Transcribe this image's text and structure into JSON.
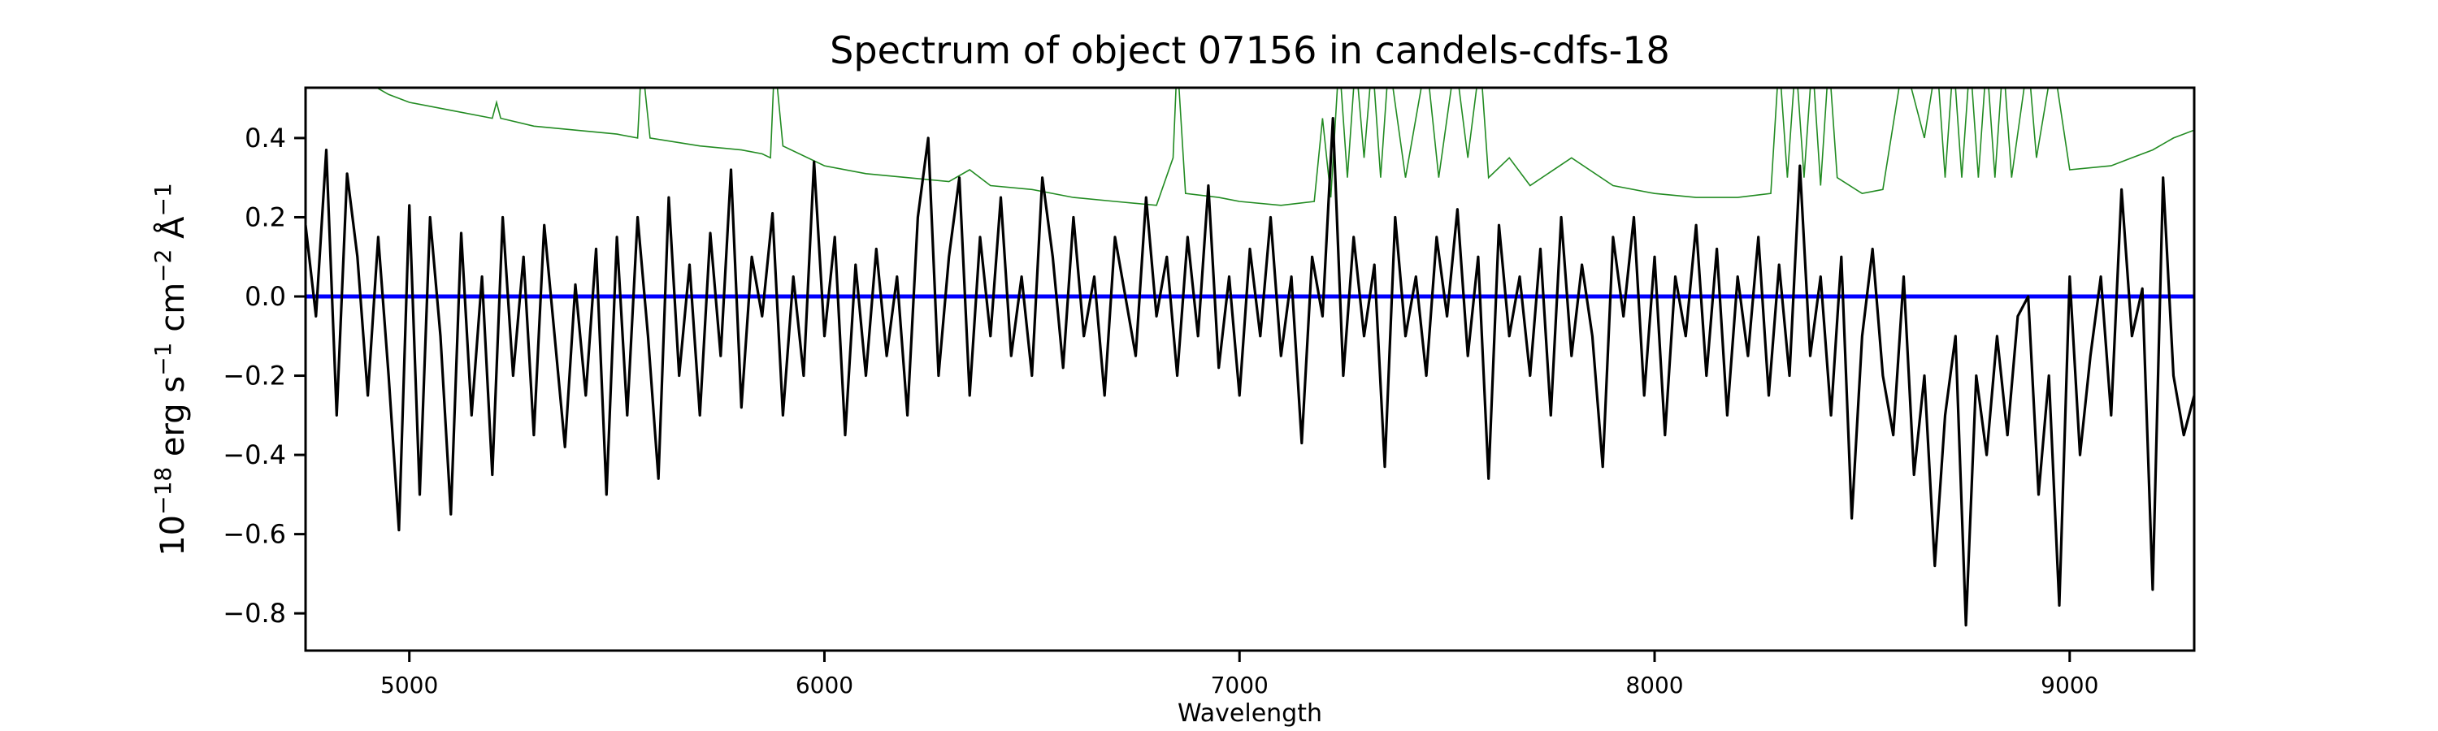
{
  "chart_data": {
    "type": "line",
    "title": "Spectrum of object 07156 in candels-cdfs-18",
    "xlabel": "Wavelength",
    "ylabel_parts": {
      "base": "10",
      "exp": "−18",
      "unit1": " erg s",
      "e1": "−1",
      "unit2": " cm",
      "e2": "−2",
      "unit3": " Å",
      "e3": "−1"
    },
    "xlim": [
      4750,
      9300
    ],
    "ylim": [
      -0.894,
      0.527
    ],
    "xticks": [
      5000,
      6000,
      7000,
      8000,
      9000
    ],
    "xtick_labels": [
      "5000",
      "6000",
      "7000",
      "8000",
      "9000"
    ],
    "yticks": [
      0.4,
      0.2,
      0.0,
      -0.2,
      -0.4,
      -0.6,
      -0.8
    ],
    "ytick_labels": [
      "0.4",
      "0.2",
      "0.0",
      "−0.2",
      "−0.4",
      "−0.6",
      "−0.8"
    ],
    "grid": false,
    "colors": {
      "flux": "#000000",
      "zero": "#0000ff",
      "contam": "#228b22"
    },
    "flux": {
      "x_start": 4750,
      "x_step": 25,
      "values": [
        0.18,
        -0.05,
        0.37,
        -0.3,
        0.31,
        0.1,
        -0.25,
        0.15,
        -0.2,
        -0.59,
        0.23,
        -0.5,
        0.2,
        -0.1,
        -0.55,
        0.16,
        -0.3,
        0.05,
        -0.45,
        0.2,
        -0.2,
        0.1,
        -0.35,
        0.18,
        -0.1,
        -0.38,
        0.03,
        -0.25,
        0.12,
        -0.5,
        0.15,
        -0.3,
        0.2,
        -0.1,
        -0.46,
        0.25,
        -0.2,
        0.08,
        -0.3,
        0.16,
        -0.15,
        0.32,
        -0.28,
        0.1,
        -0.05,
        0.21,
        -0.3,
        0.05,
        -0.2,
        0.34,
        -0.1,
        0.15,
        -0.35,
        0.08,
        -0.2,
        0.12,
        -0.15,
        0.05,
        -0.3,
        0.2,
        0.4,
        -0.2,
        0.1,
        0.3,
        -0.25,
        0.15,
        -0.1,
        0.25,
        -0.15,
        0.05,
        -0.2,
        0.3,
        0.1,
        -0.18,
        0.2,
        -0.1,
        0.05,
        -0.25,
        0.15,
        0.0,
        -0.15,
        0.25,
        -0.05,
        0.1,
        -0.2,
        0.15,
        -0.1,
        0.28,
        -0.18,
        0.05,
        -0.25,
        0.12,
        -0.1,
        0.2,
        -0.15,
        0.05,
        -0.37,
        0.1,
        -0.05,
        0.45,
        -0.2,
        0.15,
        -0.1,
        0.08,
        -0.43,
        0.2,
        -0.1,
        0.05,
        -0.2,
        0.15,
        -0.05,
        0.22,
        -0.15,
        0.1,
        -0.46,
        0.18,
        -0.1,
        0.05,
        -0.2,
        0.12,
        -0.3,
        0.2,
        -0.15,
        0.08,
        -0.1,
        -0.43,
        0.15,
        -0.05,
        0.2,
        -0.25,
        0.1,
        -0.35,
        0.05,
        -0.1,
        0.18,
        -0.2,
        0.12,
        -0.3,
        0.05,
        -0.15,
        0.15,
        -0.25,
        0.08,
        -0.2,
        0.33,
        -0.15,
        0.05,
        -0.3,
        0.1,
        -0.56,
        -0.1,
        0.12,
        -0.2,
        -0.35,
        0.05,
        -0.45,
        -0.2,
        -0.68,
        -0.3,
        -0.1,
        -0.83,
        -0.2,
        -0.4,
        -0.1,
        -0.35,
        -0.05,
        0.0,
        -0.5,
        -0.2,
        -0.78,
        0.05,
        -0.4,
        -0.15,
        0.05,
        -0.3,
        0.27,
        -0.1,
        0.02,
        -0.74,
        0.3,
        -0.2,
        -0.35,
        -0.25
      ]
    },
    "zero_line": 0.0,
    "contamination": [
      [
        4900,
        0.54
      ],
      [
        4950,
        0.51
      ],
      [
        5000,
        0.49
      ],
      [
        5100,
        0.47
      ],
      [
        5200,
        0.45
      ],
      [
        5210,
        0.49
      ],
      [
        5220,
        0.45
      ],
      [
        5300,
        0.43
      ],
      [
        5400,
        0.42
      ],
      [
        5500,
        0.41
      ],
      [
        5550,
        0.4
      ],
      [
        5560,
        0.6
      ],
      [
        5580,
        0.4
      ],
      [
        5700,
        0.38
      ],
      [
        5800,
        0.37
      ],
      [
        5850,
        0.36
      ],
      [
        5870,
        0.35
      ],
      [
        5880,
        0.6
      ],
      [
        5900,
        0.38
      ],
      [
        6000,
        0.33
      ],
      [
        6100,
        0.31
      ],
      [
        6200,
        0.3
      ],
      [
        6300,
        0.29
      ],
      [
        6350,
        0.32
      ],
      [
        6400,
        0.28
      ],
      [
        6500,
        0.27
      ],
      [
        6600,
        0.25
      ],
      [
        6700,
        0.24
      ],
      [
        6800,
        0.23
      ],
      [
        6840,
        0.35
      ],
      [
        6850,
        0.6
      ],
      [
        6870,
        0.26
      ],
      [
        6950,
        0.25
      ],
      [
        7000,
        0.24
      ],
      [
        7100,
        0.23
      ],
      [
        7180,
        0.24
      ],
      [
        7200,
        0.45
      ],
      [
        7220,
        0.25
      ],
      [
        7240,
        0.6
      ],
      [
        7260,
        0.3
      ],
      [
        7280,
        0.6
      ],
      [
        7300,
        0.35
      ],
      [
        7320,
        0.6
      ],
      [
        7340,
        0.3
      ],
      [
        7360,
        0.6
      ],
      [
        7400,
        0.3
      ],
      [
        7450,
        0.6
      ],
      [
        7480,
        0.3
      ],
      [
        7520,
        0.6
      ],
      [
        7550,
        0.35
      ],
      [
        7580,
        0.6
      ],
      [
        7600,
        0.3
      ],
      [
        7650,
        0.35
      ],
      [
        7700,
        0.28
      ],
      [
        7800,
        0.35
      ],
      [
        7900,
        0.28
      ],
      [
        8000,
        0.26
      ],
      [
        8100,
        0.25
      ],
      [
        8200,
        0.25
      ],
      [
        8280,
        0.26
      ],
      [
        8300,
        0.6
      ],
      [
        8320,
        0.3
      ],
      [
        8340,
        0.6
      ],
      [
        8360,
        0.3
      ],
      [
        8380,
        0.6
      ],
      [
        8400,
        0.28
      ],
      [
        8420,
        0.6
      ],
      [
        8440,
        0.3
      ],
      [
        8500,
        0.26
      ],
      [
        8550,
        0.27
      ],
      [
        8600,
        0.6
      ],
      [
        8650,
        0.4
      ],
      [
        8680,
        0.6
      ],
      [
        8700,
        0.3
      ],
      [
        8720,
        0.6
      ],
      [
        8740,
        0.3
      ],
      [
        8760,
        0.6
      ],
      [
        8780,
        0.3
      ],
      [
        8800,
        0.6
      ],
      [
        8820,
        0.3
      ],
      [
        8840,
        0.6
      ],
      [
        8860,
        0.3
      ],
      [
        8900,
        0.6
      ],
      [
        8920,
        0.35
      ],
      [
        8960,
        0.6
      ],
      [
        9000,
        0.32
      ],
      [
        9100,
        0.33
      ],
      [
        9150,
        0.35
      ],
      [
        9200,
        0.37
      ],
      [
        9250,
        0.4
      ],
      [
        9300,
        0.42
      ]
    ]
  }
}
